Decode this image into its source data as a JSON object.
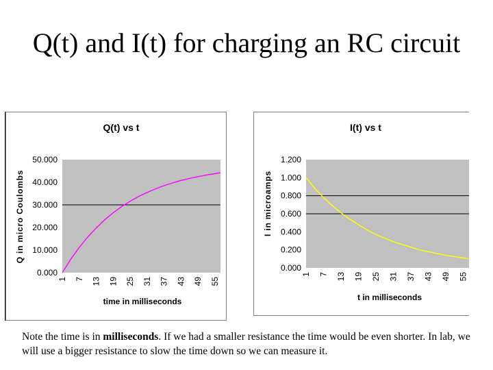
{
  "slide": {
    "title": "Q(t) and I(t) for charging an RC circuit",
    "note_before": "Note the time is in ",
    "note_emphasis": "milliseconds",
    "note_after": ".  If we had a smaller resistance the time would be even shorter.  In lab, we will use a bigger resistance to slow the time down so we can measure it."
  },
  "colors": {
    "plot_area": "#c0c0c0",
    "q_line": "#ff00ff",
    "i_line": "#ffff00",
    "gridline": "#000000"
  },
  "chart_data": [
    {
      "type": "line",
      "title": "Q(t) vs t",
      "xlabel": "time in milliseconds",
      "ylabel": "Q in micro Coulombs",
      "ylim": [
        0,
        50
      ],
      "y_ticks": [
        "0.000",
        "10.000",
        "20.000",
        "30.000",
        "40.000",
        "50.000"
      ],
      "x_tick_labels": [
        "1",
        "7",
        "13",
        "19",
        "25",
        "31",
        "37",
        "43",
        "49",
        "55"
      ],
      "x_range": [
        1,
        57
      ],
      "grid": "horizontal major at 30",
      "series": [
        {
          "x": [
            1,
            4,
            7,
            10,
            13,
            16,
            19,
            22,
            25,
            28,
            31,
            34,
            37,
            40,
            43,
            46,
            49,
            52,
            55,
            57
          ],
          "values": [
            0,
            6.0,
            11.2,
            15.8,
            19.8,
            23.4,
            26.5,
            29.2,
            31.6,
            33.7,
            35.5,
            37.1,
            38.5,
            39.7,
            40.8,
            41.7,
            42.5,
            43.2,
            43.8,
            44.2
          ]
        }
      ]
    },
    {
      "type": "line",
      "title": "I(t) vs t",
      "xlabel": "t in milliseconds",
      "ylabel": "I in microamps",
      "ylim": [
        0,
        1.2
      ],
      "y_ticks": [
        "0.000",
        "0.200",
        "0.400",
        "0.600",
        "0.800",
        "1.000",
        "1.200"
      ],
      "x_tick_labels": [
        "1",
        "7",
        "13",
        "19",
        "25",
        "31",
        "37",
        "43",
        "49",
        "55"
      ],
      "x_range": [
        1,
        57
      ],
      "grid": "horizontal major at 0.8 and 0.6",
      "series": [
        {
          "x": [
            1,
            4,
            7,
            10,
            13,
            16,
            19,
            22,
            25,
            28,
            31,
            34,
            37,
            40,
            43,
            46,
            49,
            52,
            55,
            57
          ],
          "values": [
            1.0,
            0.88,
            0.78,
            0.69,
            0.61,
            0.54,
            0.48,
            0.42,
            0.37,
            0.33,
            0.29,
            0.26,
            0.23,
            0.2,
            0.18,
            0.16,
            0.14,
            0.125,
            0.11,
            0.1
          ]
        }
      ]
    }
  ]
}
